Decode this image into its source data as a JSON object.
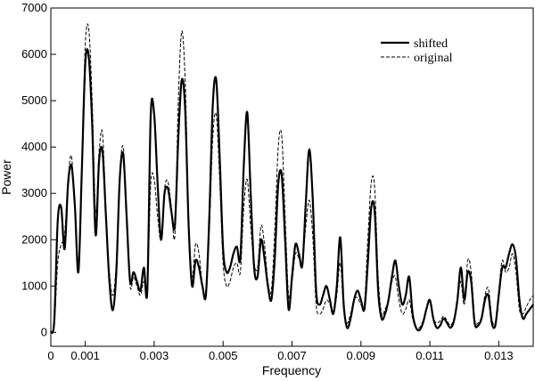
{
  "chart_data": {
    "type": "line",
    "title": "",
    "xlabel": "Frequency",
    "ylabel": "Power",
    "xlim": [
      0,
      0.014
    ],
    "ylim": [
      -300,
      7000
    ],
    "x_ticks": [
      0,
      0.001,
      0.003,
      0.005,
      0.007,
      0.009,
      0.011,
      0.013
    ],
    "x_tick_labels": [
      "0",
      "0.001",
      "0.003",
      "0.005",
      "0.007",
      "0.009",
      "0.011",
      "0.013"
    ],
    "y_ticks": [
      0,
      1000,
      2000,
      3000,
      4000,
      5000,
      6000,
      7000
    ],
    "y_tick_labels": [
      "0",
      "1000",
      "2000",
      "3000",
      "4000",
      "5000",
      "6000",
      "7000"
    ],
    "grid": false,
    "legend_position": "top-right",
    "series": [
      {
        "name": "shifted",
        "style": "solid",
        "color": "#000000",
        "points": [
          [
            0,
            0
          ],
          [
            0.0001,
            250
          ],
          [
            0.0002,
            2400
          ],
          [
            0.0003,
            2700
          ],
          [
            0.0004,
            1800
          ],
          [
            0.0005,
            3200
          ],
          [
            0.0006,
            3600
          ],
          [
            0.0007,
            2700
          ],
          [
            0.0008,
            1300
          ],
          [
            0.0009,
            3500
          ],
          [
            0.001,
            5800
          ],
          [
            0.0011,
            5950
          ],
          [
            0.0012,
            4500
          ],
          [
            0.0013,
            2100
          ],
          [
            0.0014,
            3700
          ],
          [
            0.0015,
            3900
          ],
          [
            0.0016,
            2500
          ],
          [
            0.0017,
            1100
          ],
          [
            0.0018,
            480
          ],
          [
            0.0019,
            1300
          ],
          [
            0.002,
            3300
          ],
          [
            0.0021,
            3850
          ],
          [
            0.0022,
            2500
          ],
          [
            0.0023,
            1100
          ],
          [
            0.0024,
            1300
          ],
          [
            0.0025,
            1100
          ],
          [
            0.0026,
            900
          ],
          [
            0.0027,
            1400
          ],
          [
            0.0028,
            900
          ],
          [
            0.0029,
            4700
          ],
          [
            0.003,
            4700
          ],
          [
            0.0031,
            3200
          ],
          [
            0.0032,
            2000
          ],
          [
            0.0033,
            3000
          ],
          [
            0.0034,
            3100
          ],
          [
            0.0035,
            2600
          ],
          [
            0.0036,
            2300
          ],
          [
            0.0037,
            4200
          ],
          [
            0.0038,
            5450
          ],
          [
            0.0039,
            4800
          ],
          [
            0.004,
            2300
          ],
          [
            0.0041,
            1000
          ],
          [
            0.0042,
            1550
          ],
          [
            0.0043,
            1400
          ],
          [
            0.0044,
            1000
          ],
          [
            0.0045,
            800
          ],
          [
            0.0046,
            2500
          ],
          [
            0.0047,
            4900
          ],
          [
            0.0048,
            5450
          ],
          [
            0.0049,
            3800
          ],
          [
            0.005,
            1800
          ],
          [
            0.0051,
            1300
          ],
          [
            0.0052,
            1400
          ],
          [
            0.0053,
            1700
          ],
          [
            0.0054,
            1850
          ],
          [
            0.0055,
            1600
          ],
          [
            0.0056,
            3600
          ],
          [
            0.0057,
            4750
          ],
          [
            0.0058,
            3000
          ],
          [
            0.0059,
            1400
          ],
          [
            0.006,
            1200
          ],
          [
            0.0061,
            2000
          ],
          [
            0.0062,
            1600
          ],
          [
            0.0063,
            1000
          ],
          [
            0.0064,
            700
          ],
          [
            0.0065,
            1600
          ],
          [
            0.0066,
            3200
          ],
          [
            0.0067,
            3400
          ],
          [
            0.0068,
            2000
          ],
          [
            0.0069,
            500
          ],
          [
            0.007,
            1200
          ],
          [
            0.0071,
            1900
          ],
          [
            0.0072,
            1700
          ],
          [
            0.0073,
            1450
          ],
          [
            0.0074,
            2800
          ],
          [
            0.0075,
            3950
          ],
          [
            0.0076,
            2900
          ],
          [
            0.0077,
            900
          ],
          [
            0.0078,
            600
          ],
          [
            0.0079,
            800
          ],
          [
            0.008,
            1000
          ],
          [
            0.0081,
            700
          ],
          [
            0.0082,
            400
          ],
          [
            0.0083,
            1000
          ],
          [
            0.0084,
            2050
          ],
          [
            0.0085,
            600
          ],
          [
            0.0086,
            100
          ],
          [
            0.0087,
            300
          ],
          [
            0.0088,
            700
          ],
          [
            0.0089,
            900
          ],
          [
            0.009,
            700
          ],
          [
            0.0091,
            500
          ],
          [
            0.0092,
            1500
          ],
          [
            0.0093,
            2700
          ],
          [
            0.0094,
            2600
          ],
          [
            0.0095,
            900
          ],
          [
            0.0096,
            300
          ],
          [
            0.0097,
            400
          ],
          [
            0.0098,
            700
          ],
          [
            0.0099,
            1200
          ],
          [
            0.01,
            1550
          ],
          [
            0.0101,
            1000
          ],
          [
            0.0102,
            600
          ],
          [
            0.0103,
            800
          ],
          [
            0.0104,
            1200
          ],
          [
            0.0105,
            400
          ],
          [
            0.0106,
            100
          ],
          [
            0.0107,
            50
          ],
          [
            0.0108,
            200
          ],
          [
            0.0109,
            500
          ],
          [
            0.011,
            700
          ],
          [
            0.0111,
            300
          ],
          [
            0.0112,
            100
          ],
          [
            0.0113,
            150
          ],
          [
            0.0114,
            300
          ],
          [
            0.0115,
            200
          ],
          [
            0.0116,
            100
          ],
          [
            0.0117,
            250
          ],
          [
            0.0118,
            700
          ],
          [
            0.0119,
            1400
          ],
          [
            0.012,
            700
          ],
          [
            0.0121,
            1300
          ],
          [
            0.0122,
            1100
          ],
          [
            0.0123,
            200
          ],
          [
            0.0124,
            150
          ],
          [
            0.0125,
            300
          ],
          [
            0.0126,
            700
          ],
          [
            0.0127,
            800
          ],
          [
            0.0128,
            200
          ],
          [
            0.0129,
            150
          ],
          [
            0.013,
            800
          ],
          [
            0.0131,
            1400
          ],
          [
            0.0132,
            1400
          ],
          [
            0.0133,
            1700
          ],
          [
            0.0134,
            1900
          ],
          [
            0.0135,
            1600
          ],
          [
            0.0136,
            700
          ],
          [
            0.0137,
            300
          ],
          [
            0.0138,
            400
          ],
          [
            0.0139,
            500
          ],
          [
            0.014,
            600
          ]
        ]
      },
      {
        "name": "original",
        "style": "dashed",
        "color": "#000000",
        "points": [
          [
            0,
            0
          ],
          [
            0.0001,
            200
          ],
          [
            0.0002,
            1500
          ],
          [
            0.0003,
            1900
          ],
          [
            0.0004,
            2100
          ],
          [
            0.0005,
            3300
          ],
          [
            0.0006,
            3800
          ],
          [
            0.0007,
            2600
          ],
          [
            0.0008,
            1500
          ],
          [
            0.0009,
            3600
          ],
          [
            0.001,
            6200
          ],
          [
            0.0011,
            6550
          ],
          [
            0.0012,
            5000
          ],
          [
            0.0013,
            2600
          ],
          [
            0.0014,
            3900
          ],
          [
            0.0015,
            4300
          ],
          [
            0.0016,
            2600
          ],
          [
            0.0017,
            1300
          ],
          [
            0.0018,
            800
          ],
          [
            0.0019,
            1500
          ],
          [
            0.002,
            3400
          ],
          [
            0.0021,
            4000
          ],
          [
            0.0022,
            2600
          ],
          [
            0.0023,
            1000
          ],
          [
            0.0024,
            1200
          ],
          [
            0.0025,
            1000
          ],
          [
            0.0026,
            800
          ],
          [
            0.0027,
            1100
          ],
          [
            0.0028,
            900
          ],
          [
            0.0029,
            3200
          ],
          [
            0.003,
            3300
          ],
          [
            0.0031,
            2500
          ],
          [
            0.0032,
            2000
          ],
          [
            0.0033,
            3100
          ],
          [
            0.0034,
            3250
          ],
          [
            0.0035,
            2700
          ],
          [
            0.0036,
            2100
          ],
          [
            0.0037,
            5000
          ],
          [
            0.0038,
            6500
          ],
          [
            0.0039,
            5400
          ],
          [
            0.004,
            2500
          ],
          [
            0.0041,
            1200
          ],
          [
            0.0042,
            1900
          ],
          [
            0.0043,
            1700
          ],
          [
            0.0044,
            1000
          ],
          [
            0.0045,
            900
          ],
          [
            0.0046,
            2200
          ],
          [
            0.0047,
            4200
          ],
          [
            0.0048,
            4700
          ],
          [
            0.0049,
            3300
          ],
          [
            0.005,
            1500
          ],
          [
            0.0051,
            1000
          ],
          [
            0.0052,
            1100
          ],
          [
            0.0053,
            1400
          ],
          [
            0.0054,
            1500
          ],
          [
            0.0055,
            1300
          ],
          [
            0.0056,
            2700
          ],
          [
            0.0057,
            3300
          ],
          [
            0.0058,
            2300
          ],
          [
            0.0059,
            1500
          ],
          [
            0.006,
            1400
          ],
          [
            0.0061,
            2300
          ],
          [
            0.0062,
            1900
          ],
          [
            0.0063,
            1100
          ],
          [
            0.0064,
            900
          ],
          [
            0.0065,
            2200
          ],
          [
            0.0066,
            4000
          ],
          [
            0.0067,
            4250
          ],
          [
            0.0068,
            2500
          ],
          [
            0.0069,
            800
          ],
          [
            0.007,
            1100
          ],
          [
            0.0071,
            1700
          ],
          [
            0.0072,
            1600
          ],
          [
            0.0073,
            1500
          ],
          [
            0.0074,
            2300
          ],
          [
            0.0075,
            2850
          ],
          [
            0.0076,
            2100
          ],
          [
            0.0077,
            600
          ],
          [
            0.0078,
            400
          ],
          [
            0.0079,
            500
          ],
          [
            0.008,
            700
          ],
          [
            0.0081,
            600
          ],
          [
            0.0082,
            400
          ],
          [
            0.0083,
            800
          ],
          [
            0.0084,
            1500
          ],
          [
            0.0085,
            500
          ],
          [
            0.0086,
            200
          ],
          [
            0.0087,
            400
          ],
          [
            0.0088,
            700
          ],
          [
            0.0089,
            750
          ],
          [
            0.009,
            600
          ],
          [
            0.0091,
            600
          ],
          [
            0.0092,
            2000
          ],
          [
            0.0093,
            3250
          ],
          [
            0.0094,
            3100
          ],
          [
            0.0095,
            1200
          ],
          [
            0.0096,
            400
          ],
          [
            0.0097,
            500
          ],
          [
            0.0098,
            700
          ],
          [
            0.0099,
            1100
          ],
          [
            0.01,
            1200
          ],
          [
            0.0101,
            700
          ],
          [
            0.0102,
            400
          ],
          [
            0.0103,
            500
          ],
          [
            0.0104,
            700
          ],
          [
            0.0105,
            300
          ],
          [
            0.0106,
            100
          ],
          [
            0.0107,
            100
          ],
          [
            0.0108,
            250
          ],
          [
            0.0109,
            500
          ],
          [
            0.011,
            650
          ],
          [
            0.0111,
            300
          ],
          [
            0.0112,
            200
          ],
          [
            0.0113,
            250
          ],
          [
            0.0114,
            350
          ],
          [
            0.0115,
            250
          ],
          [
            0.0116,
            150
          ],
          [
            0.0117,
            300
          ],
          [
            0.0118,
            700
          ],
          [
            0.0119,
            1100
          ],
          [
            0.012,
            600
          ],
          [
            0.0121,
            1550
          ],
          [
            0.0122,
            1300
          ],
          [
            0.0123,
            300
          ],
          [
            0.0124,
            200
          ],
          [
            0.0125,
            350
          ],
          [
            0.0126,
            800
          ],
          [
            0.0127,
            950
          ],
          [
            0.0128,
            300
          ],
          [
            0.0129,
            200
          ],
          [
            0.013,
            900
          ],
          [
            0.0131,
            1550
          ],
          [
            0.0132,
            1300
          ],
          [
            0.0133,
            1400
          ],
          [
            0.0134,
            1700
          ],
          [
            0.0135,
            1300
          ],
          [
            0.0136,
            500
          ],
          [
            0.0137,
            400
          ],
          [
            0.0138,
            550
          ],
          [
            0.0139,
            700
          ],
          [
            0.014,
            800
          ]
        ]
      }
    ]
  }
}
